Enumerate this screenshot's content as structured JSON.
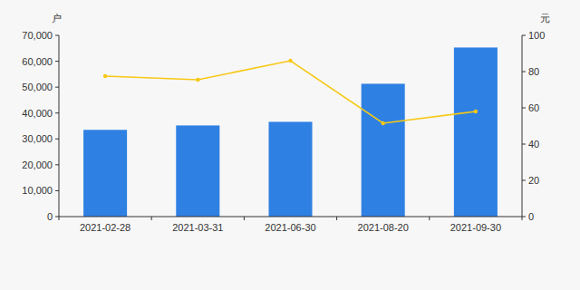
{
  "chart_data": {
    "type": "bar",
    "y_label": "户",
    "y2_label": "元",
    "categories": [
      "2021-02-28",
      "2021-03-31",
      "2021-06-30",
      "2021-08-20",
      "2021-09-30"
    ],
    "series": [
      {
        "type": "bar",
        "color": "#2f80e3",
        "values": [
          33500,
          35200,
          36600,
          51300,
          65300
        ]
      },
      {
        "type": "line",
        "axis": "y2",
        "color": "#f7c815",
        "marker": "circle",
        "values": [
          77.5,
          75.5,
          86,
          51.5,
          58
        ]
      }
    ],
    "ylim": [
      0,
      70000
    ],
    "yticks": [
      0,
      {
        "value": 10000,
        "label": "10,000"
      },
      {
        "value": 20000,
        "label": "20,000"
      },
      {
        "value": 30000,
        "label": "30,000"
      },
      {
        "value": 40000,
        "label": "40,000"
      },
      {
        "value": 50000,
        "label": "50,000"
      },
      {
        "value": 60000,
        "label": "60,000"
      },
      {
        "value": 70000,
        "label": "70,000"
      }
    ],
    "y2lim": [
      0,
      100
    ],
    "y2ticks": [
      0,
      20,
      40,
      60,
      80,
      100
    ],
    "grid": false
  }
}
